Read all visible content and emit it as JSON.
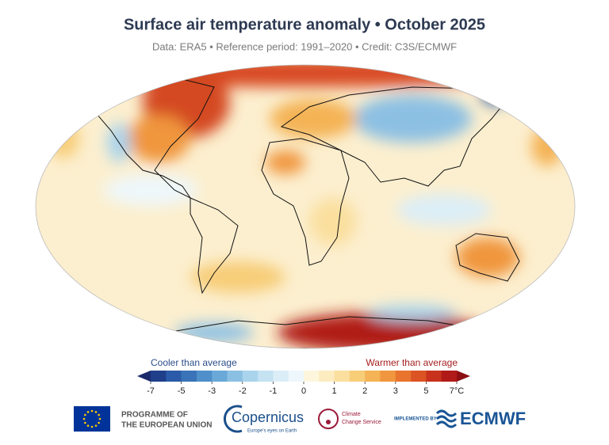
{
  "title": "Surface air temperature anomaly • October 2025",
  "subtitle": "Data: ERA5 • Reference period: 1991–2020 • Credit: C3S/ECMWF",
  "legend": {
    "cooler_label": "Cooler than average",
    "warmer_label": "Warmer than average",
    "ticks": [
      -7,
      -5,
      -3,
      -2,
      -1,
      0,
      1,
      2,
      3,
      5,
      {
        "value": 7,
        "label": "7°C"
      }
    ],
    "colors": [
      "#1f3f8a",
      "#2b5ba8",
      "#3a73b8",
      "#4f8fca",
      "#6aa8d8",
      "#8cc0e3",
      "#a9d4ec",
      "#c4e2f2",
      "#dbeef7",
      "#eef7fb",
      "#fdf6dc",
      "#fcecc0",
      "#fadf9e",
      "#f7cd78",
      "#f4b355",
      "#f0963e",
      "#e8742d",
      "#dc5424",
      "#c8321c",
      "#b01a18"
    ],
    "under_color": "#1a2a6c",
    "over_color": "#8c0f14"
  },
  "logos": {
    "eu": [
      "PROGRAMME OF",
      "THE EUROPEAN UNION"
    ],
    "copernicus": "Copernicus",
    "copernicus_tagline": "Europe's eyes on Earth",
    "c3s": [
      "Climate",
      "Change Service"
    ],
    "implemented_by": "IMPLEMENTED BY",
    "ecmwf": "ECMWF"
  }
}
